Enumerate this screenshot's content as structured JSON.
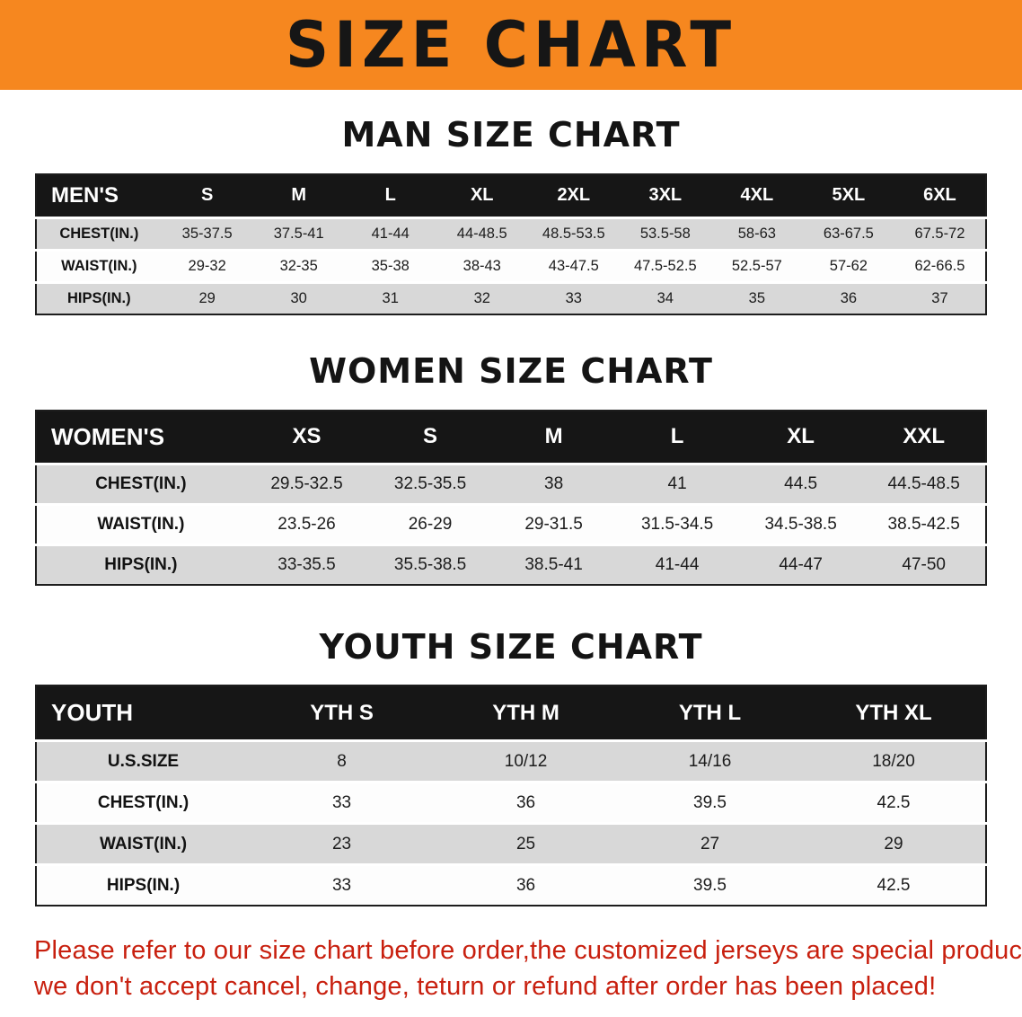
{
  "banner": {
    "title": "SIZE CHART"
  },
  "charts": [
    {
      "id": "men",
      "heading": "MAN SIZE CHART",
      "header": [
        "MEN'S",
        "S",
        "M",
        "L",
        "XL",
        "2XL",
        "3XL",
        "4XL",
        "5XL",
        "6XL"
      ],
      "rows": [
        [
          "CHEST(IN.)",
          "35-37.5",
          "37.5-41",
          "41-44",
          "44-48.5",
          "48.5-53.5",
          "53.5-58",
          "58-63",
          "63-67.5",
          "67.5-72"
        ],
        [
          "WAIST(IN.)",
          "29-32",
          "32-35",
          "35-38",
          "38-43",
          "43-47.5",
          "47.5-52.5",
          "52.5-57",
          "57-62",
          "62-66.5"
        ],
        [
          "HIPS(IN.)",
          "29",
          "30",
          "31",
          "32",
          "33",
          "34",
          "35",
          "36",
          "37"
        ]
      ]
    },
    {
      "id": "women",
      "heading": "WOMEN SIZE CHART",
      "header": [
        "WOMEN'S",
        "XS",
        "S",
        "M",
        "L",
        "XL",
        "XXL"
      ],
      "rows": [
        [
          "CHEST(IN.)",
          "29.5-32.5",
          "32.5-35.5",
          "38",
          "41",
          "44.5",
          "44.5-48.5"
        ],
        [
          "WAIST(IN.)",
          "23.5-26",
          "26-29",
          "29-31.5",
          "31.5-34.5",
          "34.5-38.5",
          "38.5-42.5"
        ],
        [
          "HIPS(IN.)",
          "33-35.5",
          "35.5-38.5",
          "38.5-41",
          "41-44",
          "44-47",
          "47-50"
        ]
      ]
    },
    {
      "id": "youth",
      "heading": "YOUTH SIZE CHART",
      "header": [
        "YOUTH",
        "YTH S",
        "YTH M",
        "YTH L",
        "YTH XL"
      ],
      "rows": [
        [
          "U.S.SIZE",
          "8",
          "10/12",
          "14/16",
          "18/20"
        ],
        [
          "CHEST(IN.)",
          "33",
          "36",
          "39.5",
          "42.5"
        ],
        [
          "WAIST(IN.)",
          "23",
          "25",
          "27",
          "29"
        ],
        [
          "HIPS(IN.)",
          "33",
          "36",
          "39.5",
          "42.5"
        ]
      ]
    }
  ],
  "disclaimer": {
    "line1": "Please refer to our size chart before order,the customized jerseys are special products,",
    "line2": "we don't accept cancel, change, teturn or refund after order has been placed!"
  },
  "colors": {
    "banner_orange": "#F6871F",
    "header_black": "#161616",
    "row_gray": "#D8D8D8",
    "disclaimer_red": "#C8200F"
  }
}
